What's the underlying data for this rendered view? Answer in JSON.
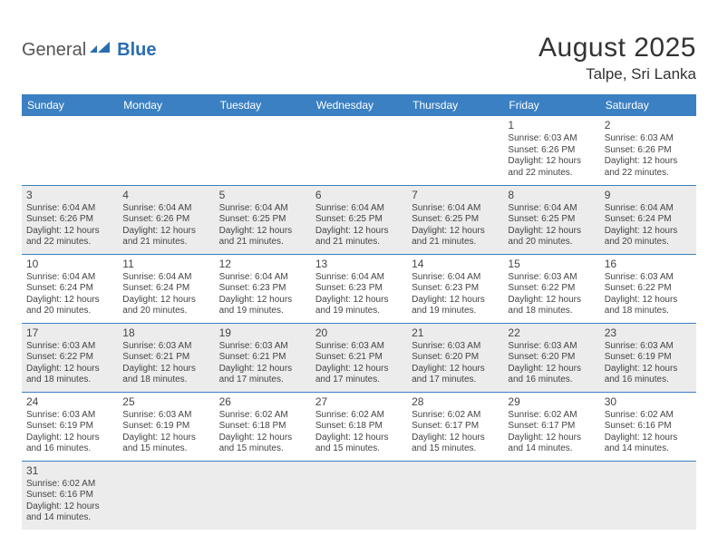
{
  "logo": {
    "part1": "General",
    "part2": "Blue"
  },
  "title": "August 2025",
  "location": "Talpe, Sri Lanka",
  "colors": {
    "header_bg": "#3b80c2",
    "header_fg": "#ffffff",
    "shade_bg": "#ececec",
    "border": "#3b80c2",
    "text": "#444444",
    "logo_blue": "#2a6db0"
  },
  "day_headers": [
    "Sunday",
    "Monday",
    "Tuesday",
    "Wednesday",
    "Thursday",
    "Friday",
    "Saturday"
  ],
  "weeks": [
    {
      "shade": false,
      "days": [
        null,
        null,
        null,
        null,
        null,
        {
          "n": "1",
          "sr": "Sunrise: 6:03 AM",
          "ss": "Sunset: 6:26 PM",
          "d1": "Daylight: 12 hours",
          "d2": "and 22 minutes."
        },
        {
          "n": "2",
          "sr": "Sunrise: 6:03 AM",
          "ss": "Sunset: 6:26 PM",
          "d1": "Daylight: 12 hours",
          "d2": "and 22 minutes."
        }
      ]
    },
    {
      "shade": true,
      "days": [
        {
          "n": "3",
          "sr": "Sunrise: 6:04 AM",
          "ss": "Sunset: 6:26 PM",
          "d1": "Daylight: 12 hours",
          "d2": "and 22 minutes."
        },
        {
          "n": "4",
          "sr": "Sunrise: 6:04 AM",
          "ss": "Sunset: 6:26 PM",
          "d1": "Daylight: 12 hours",
          "d2": "and 21 minutes."
        },
        {
          "n": "5",
          "sr": "Sunrise: 6:04 AM",
          "ss": "Sunset: 6:25 PM",
          "d1": "Daylight: 12 hours",
          "d2": "and 21 minutes."
        },
        {
          "n": "6",
          "sr": "Sunrise: 6:04 AM",
          "ss": "Sunset: 6:25 PM",
          "d1": "Daylight: 12 hours",
          "d2": "and 21 minutes."
        },
        {
          "n": "7",
          "sr": "Sunrise: 6:04 AM",
          "ss": "Sunset: 6:25 PM",
          "d1": "Daylight: 12 hours",
          "d2": "and 21 minutes."
        },
        {
          "n": "8",
          "sr": "Sunrise: 6:04 AM",
          "ss": "Sunset: 6:25 PM",
          "d1": "Daylight: 12 hours",
          "d2": "and 20 minutes."
        },
        {
          "n": "9",
          "sr": "Sunrise: 6:04 AM",
          "ss": "Sunset: 6:24 PM",
          "d1": "Daylight: 12 hours",
          "d2": "and 20 minutes."
        }
      ]
    },
    {
      "shade": false,
      "days": [
        {
          "n": "10",
          "sr": "Sunrise: 6:04 AM",
          "ss": "Sunset: 6:24 PM",
          "d1": "Daylight: 12 hours",
          "d2": "and 20 minutes."
        },
        {
          "n": "11",
          "sr": "Sunrise: 6:04 AM",
          "ss": "Sunset: 6:24 PM",
          "d1": "Daylight: 12 hours",
          "d2": "and 20 minutes."
        },
        {
          "n": "12",
          "sr": "Sunrise: 6:04 AM",
          "ss": "Sunset: 6:23 PM",
          "d1": "Daylight: 12 hours",
          "d2": "and 19 minutes."
        },
        {
          "n": "13",
          "sr": "Sunrise: 6:04 AM",
          "ss": "Sunset: 6:23 PM",
          "d1": "Daylight: 12 hours",
          "d2": "and 19 minutes."
        },
        {
          "n": "14",
          "sr": "Sunrise: 6:04 AM",
          "ss": "Sunset: 6:23 PM",
          "d1": "Daylight: 12 hours",
          "d2": "and 19 minutes."
        },
        {
          "n": "15",
          "sr": "Sunrise: 6:03 AM",
          "ss": "Sunset: 6:22 PM",
          "d1": "Daylight: 12 hours",
          "d2": "and 18 minutes."
        },
        {
          "n": "16",
          "sr": "Sunrise: 6:03 AM",
          "ss": "Sunset: 6:22 PM",
          "d1": "Daylight: 12 hours",
          "d2": "and 18 minutes."
        }
      ]
    },
    {
      "shade": true,
      "days": [
        {
          "n": "17",
          "sr": "Sunrise: 6:03 AM",
          "ss": "Sunset: 6:22 PM",
          "d1": "Daylight: 12 hours",
          "d2": "and 18 minutes."
        },
        {
          "n": "18",
          "sr": "Sunrise: 6:03 AM",
          "ss": "Sunset: 6:21 PM",
          "d1": "Daylight: 12 hours",
          "d2": "and 18 minutes."
        },
        {
          "n": "19",
          "sr": "Sunrise: 6:03 AM",
          "ss": "Sunset: 6:21 PM",
          "d1": "Daylight: 12 hours",
          "d2": "and 17 minutes."
        },
        {
          "n": "20",
          "sr": "Sunrise: 6:03 AM",
          "ss": "Sunset: 6:21 PM",
          "d1": "Daylight: 12 hours",
          "d2": "and 17 minutes."
        },
        {
          "n": "21",
          "sr": "Sunrise: 6:03 AM",
          "ss": "Sunset: 6:20 PM",
          "d1": "Daylight: 12 hours",
          "d2": "and 17 minutes."
        },
        {
          "n": "22",
          "sr": "Sunrise: 6:03 AM",
          "ss": "Sunset: 6:20 PM",
          "d1": "Daylight: 12 hours",
          "d2": "and 16 minutes."
        },
        {
          "n": "23",
          "sr": "Sunrise: 6:03 AM",
          "ss": "Sunset: 6:19 PM",
          "d1": "Daylight: 12 hours",
          "d2": "and 16 minutes."
        }
      ]
    },
    {
      "shade": false,
      "days": [
        {
          "n": "24",
          "sr": "Sunrise: 6:03 AM",
          "ss": "Sunset: 6:19 PM",
          "d1": "Daylight: 12 hours",
          "d2": "and 16 minutes."
        },
        {
          "n": "25",
          "sr": "Sunrise: 6:03 AM",
          "ss": "Sunset: 6:19 PM",
          "d1": "Daylight: 12 hours",
          "d2": "and 15 minutes."
        },
        {
          "n": "26",
          "sr": "Sunrise: 6:02 AM",
          "ss": "Sunset: 6:18 PM",
          "d1": "Daylight: 12 hours",
          "d2": "and 15 minutes."
        },
        {
          "n": "27",
          "sr": "Sunrise: 6:02 AM",
          "ss": "Sunset: 6:18 PM",
          "d1": "Daylight: 12 hours",
          "d2": "and 15 minutes."
        },
        {
          "n": "28",
          "sr": "Sunrise: 6:02 AM",
          "ss": "Sunset: 6:17 PM",
          "d1": "Daylight: 12 hours",
          "d2": "and 15 minutes."
        },
        {
          "n": "29",
          "sr": "Sunrise: 6:02 AM",
          "ss": "Sunset: 6:17 PM",
          "d1": "Daylight: 12 hours",
          "d2": "and 14 minutes."
        },
        {
          "n": "30",
          "sr": "Sunrise: 6:02 AM",
          "ss": "Sunset: 6:16 PM",
          "d1": "Daylight: 12 hours",
          "d2": "and 14 minutes."
        }
      ]
    },
    {
      "shade": true,
      "days": [
        {
          "n": "31",
          "sr": "Sunrise: 6:02 AM",
          "ss": "Sunset: 6:16 PM",
          "d1": "Daylight: 12 hours",
          "d2": "and 14 minutes."
        },
        null,
        null,
        null,
        null,
        null,
        null
      ]
    }
  ]
}
